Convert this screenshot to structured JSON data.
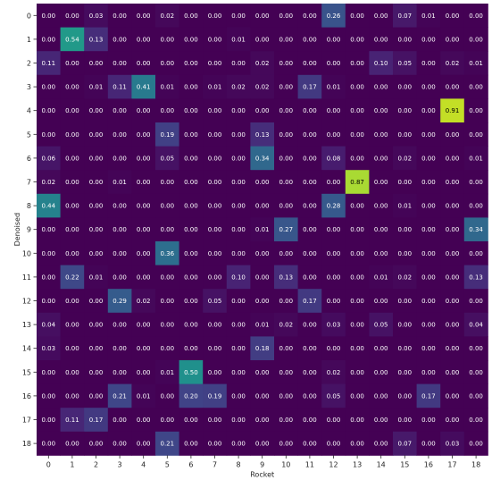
{
  "chart_data": {
    "type": "heatmap",
    "title": "",
    "xlabel": "Rocket",
    "ylabel": "Denoised",
    "x_ticks": [
      "0",
      "1",
      "2",
      "3",
      "4",
      "5",
      "6",
      "7",
      "8",
      "9",
      "10",
      "11",
      "12",
      "13",
      "14",
      "15",
      "16",
      "17",
      "18"
    ],
    "y_ticks": [
      "0",
      "1",
      "2",
      "3",
      "4",
      "5",
      "6",
      "7",
      "8",
      "9",
      "10",
      "11",
      "12",
      "13",
      "14",
      "15",
      "16",
      "17",
      "18"
    ],
    "value_range": [
      0,
      1
    ],
    "colormap": "viridis",
    "grid": false,
    "values": [
      [
        0.0,
        0.0,
        0.03,
        0.0,
        0.0,
        0.02,
        0.0,
        0.0,
        0.0,
        0.0,
        0.0,
        0.0,
        0.26,
        0.0,
        0.0,
        0.07,
        0.01,
        0.0,
        0.0
      ],
      [
        0.0,
        0.54,
        0.13,
        0.0,
        0.0,
        0.0,
        0.0,
        0.0,
        0.01,
        0.0,
        0.0,
        0.0,
        0.0,
        0.0,
        0.0,
        0.0,
        0.0,
        0.0,
        0.0
      ],
      [
        0.11,
        0.0,
        0.0,
        0.0,
        0.0,
        0.0,
        0.0,
        0.0,
        0.0,
        0.02,
        0.0,
        0.0,
        0.0,
        0.0,
        0.1,
        0.05,
        0.0,
        0.02,
        0.01
      ],
      [
        0.0,
        0.0,
        0.01,
        0.11,
        0.41,
        0.01,
        0.0,
        0.01,
        0.02,
        0.02,
        0.0,
        0.17,
        0.01,
        0.0,
        0.0,
        0.0,
        0.0,
        0.0,
        0.0
      ],
      [
        0.0,
        0.0,
        0.0,
        0.0,
        0.0,
        0.0,
        0.0,
        0.0,
        0.0,
        0.0,
        0.0,
        0.0,
        0.0,
        0.0,
        0.0,
        0.0,
        0.0,
        0.91,
        0.0
      ],
      [
        0.0,
        0.0,
        0.0,
        0.0,
        0.0,
        0.19,
        0.0,
        0.0,
        0.0,
        0.13,
        0.0,
        0.0,
        0.0,
        0.0,
        0.0,
        0.0,
        0.0,
        0.0,
        0.0
      ],
      [
        0.06,
        0.0,
        0.0,
        0.0,
        0.0,
        0.05,
        0.0,
        0.0,
        0.0,
        0.34,
        0.0,
        0.0,
        0.08,
        0.0,
        0.0,
        0.02,
        0.0,
        0.0,
        0.01
      ],
      [
        0.02,
        0.0,
        0.0,
        0.01,
        0.0,
        0.0,
        0.0,
        0.0,
        0.0,
        0.0,
        0.0,
        0.0,
        0.0,
        0.87,
        0.0,
        0.0,
        0.0,
        0.0,
        0.0
      ],
      [
        0.44,
        0.0,
        0.0,
        0.0,
        0.0,
        0.0,
        0.0,
        0.0,
        0.0,
        0.0,
        0.0,
        0.0,
        0.28,
        0.0,
        0.0,
        0.01,
        0.0,
        0.0,
        0.0
      ],
      [
        0.0,
        0.0,
        0.0,
        0.0,
        0.0,
        0.0,
        0.0,
        0.0,
        0.0,
        0.01,
        0.27,
        0.0,
        0.0,
        0.0,
        0.0,
        0.0,
        0.0,
        0.0,
        0.34
      ],
      [
        0.0,
        0.0,
        0.0,
        0.0,
        0.0,
        0.36,
        0.0,
        0.0,
        0.0,
        0.0,
        0.0,
        0.0,
        0.0,
        0.0,
        0.0,
        0.0,
        0.0,
        0.0,
        0.0
      ],
      [
        0.0,
        0.22,
        0.01,
        0.0,
        0.0,
        0.0,
        0.0,
        0.0,
        0.1,
        0.0,
        0.13,
        0.0,
        0.0,
        0.0,
        0.01,
        0.02,
        0.0,
        0.0,
        0.13
      ],
      [
        0.0,
        0.0,
        0.0,
        0.29,
        0.02,
        0.0,
        0.0,
        0.05,
        0.0,
        0.0,
        0.0,
        0.17,
        0.0,
        0.0,
        0.0,
        0.0,
        0.0,
        0.0,
        0.0
      ],
      [
        0.04,
        0.0,
        0.0,
        0.0,
        0.0,
        0.0,
        0.0,
        0.0,
        0.0,
        0.01,
        0.02,
        0.0,
        0.03,
        0.0,
        0.05,
        0.0,
        0.0,
        0.0,
        0.04
      ],
      [
        0.03,
        0.0,
        0.0,
        0.0,
        0.0,
        0.0,
        0.0,
        0.0,
        0.0,
        0.18,
        0.0,
        0.0,
        0.0,
        0.0,
        0.0,
        0.0,
        0.0,
        0.0,
        0.0
      ],
      [
        0.0,
        0.0,
        0.0,
        0.0,
        0.0,
        0.01,
        0.5,
        0.0,
        0.0,
        0.0,
        0.0,
        0.0,
        0.02,
        0.0,
        0.0,
        0.0,
        0.0,
        0.0,
        0.0
      ],
      [
        0.0,
        0.0,
        0.0,
        0.21,
        0.01,
        0.0,
        0.2,
        0.19,
        0.0,
        0.0,
        0.0,
        0.0,
        0.05,
        0.0,
        0.0,
        0.0,
        0.17,
        0.0,
        0.0
      ],
      [
        0.0,
        0.11,
        0.17,
        0.0,
        0.0,
        0.0,
        0.0,
        0.0,
        0.0,
        0.0,
        0.0,
        0.0,
        0.0,
        0.0,
        0.0,
        0.0,
        0.0,
        0.0,
        0.0
      ],
      [
        0.0,
        0.0,
        0.0,
        0.0,
        0.0,
        0.21,
        0.0,
        0.0,
        0.0,
        0.0,
        0.0,
        0.0,
        0.0,
        0.0,
        0.0,
        0.07,
        0.0,
        0.03,
        0.0
      ]
    ]
  }
}
